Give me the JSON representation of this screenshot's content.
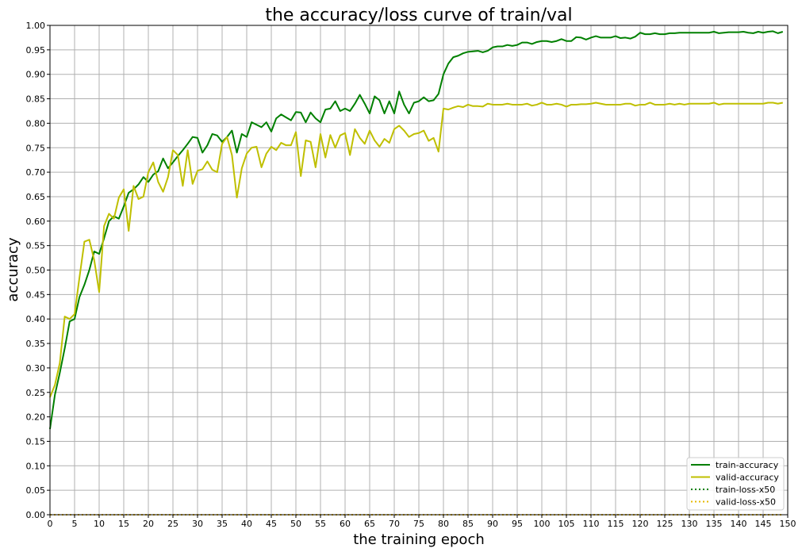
{
  "chart_data": {
    "type": "line",
    "title": "the accuracy/loss curve of train/val",
    "xlabel": "the training epoch",
    "ylabel": "accuracy",
    "xlim": [
      0,
      150
    ],
    "ylim": [
      0,
      1.0
    ],
    "x_ticks": [
      0,
      5,
      10,
      15,
      20,
      25,
      30,
      35,
      40,
      45,
      50,
      55,
      60,
      65,
      70,
      75,
      80,
      85,
      90,
      95,
      100,
      105,
      110,
      115,
      120,
      125,
      130,
      135,
      140,
      145,
      150
    ],
    "y_ticks": [
      0.0,
      0.05,
      0.1,
      0.15,
      0.2,
      0.25,
      0.3,
      0.35,
      0.4,
      0.45,
      0.5,
      0.55,
      0.6,
      0.65,
      0.7,
      0.75,
      0.8,
      0.85,
      0.9,
      0.95,
      1.0
    ],
    "y_tick_decimals": 2,
    "grid": true,
    "legend_position": "bottom-right",
    "x": [
      0,
      1,
      2,
      3,
      4,
      5,
      6,
      7,
      8,
      9,
      10,
      11,
      12,
      13,
      14,
      15,
      16,
      17,
      18,
      19,
      20,
      21,
      22,
      23,
      24,
      25,
      26,
      27,
      28,
      29,
      30,
      31,
      32,
      33,
      34,
      35,
      36,
      37,
      38,
      39,
      40,
      41,
      42,
      43,
      44,
      45,
      46,
      47,
      48,
      49,
      50,
      51,
      52,
      53,
      54,
      55,
      56,
      57,
      58,
      59,
      60,
      61,
      62,
      63,
      64,
      65,
      66,
      67,
      68,
      69,
      70,
      71,
      72,
      73,
      74,
      75,
      76,
      77,
      78,
      79,
      80,
      81,
      82,
      83,
      84,
      85,
      86,
      87,
      88,
      89,
      90,
      91,
      92,
      93,
      94,
      95,
      96,
      97,
      98,
      99,
      100,
      101,
      102,
      103,
      104,
      105,
      106,
      107,
      108,
      109,
      110,
      111,
      112,
      113,
      114,
      115,
      116,
      117,
      118,
      119,
      120,
      121,
      122,
      123,
      124,
      125,
      126,
      127,
      128,
      129,
      130,
      131,
      132,
      133,
      134,
      135,
      136,
      137,
      138,
      139,
      140,
      141,
      142,
      143,
      144,
      145,
      146,
      147,
      148,
      149
    ],
    "series": [
      {
        "name": "train-accuracy",
        "color": "#008000",
        "style": "solid",
        "values": [
          0.175,
          0.245,
          0.29,
          0.34,
          0.395,
          0.4,
          0.445,
          0.47,
          0.5,
          0.538,
          0.533,
          0.565,
          0.6,
          0.61,
          0.605,
          0.63,
          0.658,
          0.665,
          0.675,
          0.69,
          0.68,
          0.695,
          0.702,
          0.728,
          0.708,
          0.72,
          0.733,
          0.745,
          0.758,
          0.772,
          0.77,
          0.74,
          0.755,
          0.778,
          0.775,
          0.762,
          0.772,
          0.785,
          0.74,
          0.778,
          0.772,
          0.802,
          0.797,
          0.792,
          0.802,
          0.783,
          0.81,
          0.818,
          0.812,
          0.806,
          0.823,
          0.822,
          0.802,
          0.822,
          0.81,
          0.802,
          0.828,
          0.83,
          0.845,
          0.825,
          0.83,
          0.825,
          0.84,
          0.858,
          0.84,
          0.82,
          0.855,
          0.847,
          0.82,
          0.845,
          0.82,
          0.865,
          0.838,
          0.82,
          0.842,
          0.845,
          0.853,
          0.845,
          0.847,
          0.86,
          0.9,
          0.922,
          0.935,
          0.938,
          0.943,
          0.946,
          0.947,
          0.948,
          0.945,
          0.948,
          0.955,
          0.957,
          0.957,
          0.96,
          0.958,
          0.96,
          0.965,
          0.965,
          0.962,
          0.966,
          0.968,
          0.968,
          0.966,
          0.968,
          0.972,
          0.968,
          0.968,
          0.976,
          0.975,
          0.971,
          0.975,
          0.978,
          0.975,
          0.975,
          0.975,
          0.978,
          0.974,
          0.975,
          0.973,
          0.977,
          0.985,
          0.982,
          0.982,
          0.984,
          0.982,
          0.982,
          0.984,
          0.984,
          0.985,
          0.985,
          0.985,
          0.985,
          0.985,
          0.985,
          0.985,
          0.987,
          0.984,
          0.985,
          0.986,
          0.986,
          0.986,
          0.987,
          0.985,
          0.984,
          0.987,
          0.985,
          0.987,
          0.988,
          0.984,
          0.987
        ]
      },
      {
        "name": "valid-accuracy",
        "color": "#bfbf00",
        "style": "solid",
        "values": [
          0.24,
          0.265,
          0.31,
          0.405,
          0.4,
          0.41,
          0.485,
          0.558,
          0.562,
          0.52,
          0.455,
          0.59,
          0.615,
          0.605,
          0.648,
          0.665,
          0.58,
          0.672,
          0.645,
          0.65,
          0.7,
          0.72,
          0.68,
          0.66,
          0.69,
          0.745,
          0.735,
          0.672,
          0.745,
          0.676,
          0.703,
          0.706,
          0.722,
          0.705,
          0.7,
          0.758,
          0.772,
          0.735,
          0.648,
          0.708,
          0.738,
          0.75,
          0.752,
          0.71,
          0.738,
          0.752,
          0.745,
          0.76,
          0.755,
          0.755,
          0.782,
          0.692,
          0.765,
          0.762,
          0.71,
          0.778,
          0.73,
          0.776,
          0.75,
          0.775,
          0.78,
          0.735,
          0.788,
          0.77,
          0.758,
          0.785,
          0.765,
          0.752,
          0.768,
          0.76,
          0.788,
          0.795,
          0.785,
          0.772,
          0.778,
          0.78,
          0.785,
          0.764,
          0.77,
          0.742,
          0.83,
          0.828,
          0.832,
          0.835,
          0.833,
          0.838,
          0.835,
          0.835,
          0.834,
          0.84,
          0.838,
          0.838,
          0.838,
          0.84,
          0.838,
          0.838,
          0.838,
          0.84,
          0.836,
          0.838,
          0.842,
          0.838,
          0.838,
          0.84,
          0.838,
          0.834,
          0.838,
          0.838,
          0.839,
          0.839,
          0.84,
          0.842,
          0.84,
          0.838,
          0.838,
          0.838,
          0.838,
          0.84,
          0.84,
          0.836,
          0.838,
          0.838,
          0.842,
          0.838,
          0.838,
          0.838,
          0.84,
          0.838,
          0.84,
          0.838,
          0.84,
          0.84,
          0.84,
          0.84,
          0.84,
          0.842,
          0.838,
          0.84,
          0.84,
          0.84,
          0.84,
          0.84,
          0.84,
          0.84,
          0.84,
          0.84,
          0.842,
          0.842,
          0.84,
          0.842
        ]
      },
      {
        "name": "train-loss-x50",
        "color": "#008000",
        "style": "dotted",
        "values": [
          0.0,
          0.0,
          0.0,
          0.0,
          0.0,
          0.0,
          0.0,
          0.0,
          0.0,
          0.0,
          0.0,
          0.0,
          0.0,
          0.0,
          0.0,
          0.0,
          0.0,
          0.0,
          0.0,
          0.0,
          0.0,
          0.0,
          0.0,
          0.0,
          0.0,
          0.0,
          0.0,
          0.0,
          0.0,
          0.0,
          0.0,
          0.0,
          0.0,
          0.0,
          0.0,
          0.0,
          0.0,
          0.0,
          0.0,
          0.0,
          0.0,
          0.0,
          0.0,
          0.0,
          0.0,
          0.0,
          0.0,
          0.0,
          0.0,
          0.0,
          0.0,
          0.0,
          0.0,
          0.0,
          0.0,
          0.0,
          0.0,
          0.0,
          0.0,
          0.0,
          0.0,
          0.0,
          0.0,
          0.0,
          0.0,
          0.0,
          0.0,
          0.0,
          0.0,
          0.0,
          0.0,
          0.0,
          0.0,
          0.0,
          0.0,
          0.0,
          0.0,
          0.0,
          0.0,
          0.0,
          0.0,
          0.0,
          0.0,
          0.0,
          0.0,
          0.0,
          0.0,
          0.0,
          0.0,
          0.0,
          0.0,
          0.0,
          0.0,
          0.0,
          0.0,
          0.0,
          0.0,
          0.0,
          0.0,
          0.0,
          0.0,
          0.0,
          0.0,
          0.0,
          0.0,
          0.0,
          0.0,
          0.0,
          0.0,
          0.0,
          0.0,
          0.0,
          0.0,
          0.0,
          0.0,
          0.0,
          0.0,
          0.0,
          0.0,
          0.0,
          0.0,
          0.0,
          0.0,
          0.0,
          0.0,
          0.0,
          0.0,
          0.0,
          0.0,
          0.0,
          0.0,
          0.0,
          0.0,
          0.0,
          0.0,
          0.0,
          0.0,
          0.0,
          0.0,
          0.0,
          0.0,
          0.0,
          0.0,
          0.0,
          0.0,
          0.0,
          0.0,
          0.0,
          0.0,
          0.0
        ]
      },
      {
        "name": "valid-loss-x50",
        "color": "#e6b800",
        "style": "dotted",
        "values": [
          0.0,
          0.0,
          0.0,
          0.0,
          0.0,
          0.0,
          0.0,
          0.0,
          0.0,
          0.0,
          0.0,
          0.0,
          0.0,
          0.0,
          0.0,
          0.0,
          0.0,
          0.0,
          0.0,
          0.0,
          0.0,
          0.0,
          0.0,
          0.0,
          0.0,
          0.0,
          0.0,
          0.0,
          0.0,
          0.0,
          0.0,
          0.0,
          0.0,
          0.0,
          0.0,
          0.0,
          0.0,
          0.0,
          0.0,
          0.0,
          0.0,
          0.0,
          0.0,
          0.0,
          0.0,
          0.0,
          0.0,
          0.0,
          0.0,
          0.0,
          0.0,
          0.0,
          0.0,
          0.0,
          0.0,
          0.0,
          0.0,
          0.0,
          0.0,
          0.0,
          0.0,
          0.0,
          0.0,
          0.0,
          0.0,
          0.0,
          0.0,
          0.0,
          0.0,
          0.0,
          0.0,
          0.0,
          0.0,
          0.0,
          0.0,
          0.0,
          0.0,
          0.0,
          0.0,
          0.0,
          0.0,
          0.0,
          0.0,
          0.0,
          0.0,
          0.0,
          0.0,
          0.0,
          0.0,
          0.0,
          0.0,
          0.0,
          0.0,
          0.0,
          0.0,
          0.0,
          0.0,
          0.0,
          0.0,
          0.0,
          0.0,
          0.0,
          0.0,
          0.0,
          0.0,
          0.0,
          0.0,
          0.0,
          0.0,
          0.0,
          0.0,
          0.0,
          0.0,
          0.0,
          0.0,
          0.0,
          0.0,
          0.0,
          0.0,
          0.0,
          0.0,
          0.0,
          0.0,
          0.0,
          0.0,
          0.0,
          0.0,
          0.0,
          0.0,
          0.0,
          0.0,
          0.0,
          0.0,
          0.0,
          0.0,
          0.0,
          0.0,
          0.0,
          0.0,
          0.0,
          0.0,
          0.0,
          0.0,
          0.0,
          0.0,
          0.0,
          0.0,
          0.0,
          0.0,
          0.0
        ]
      }
    ]
  }
}
